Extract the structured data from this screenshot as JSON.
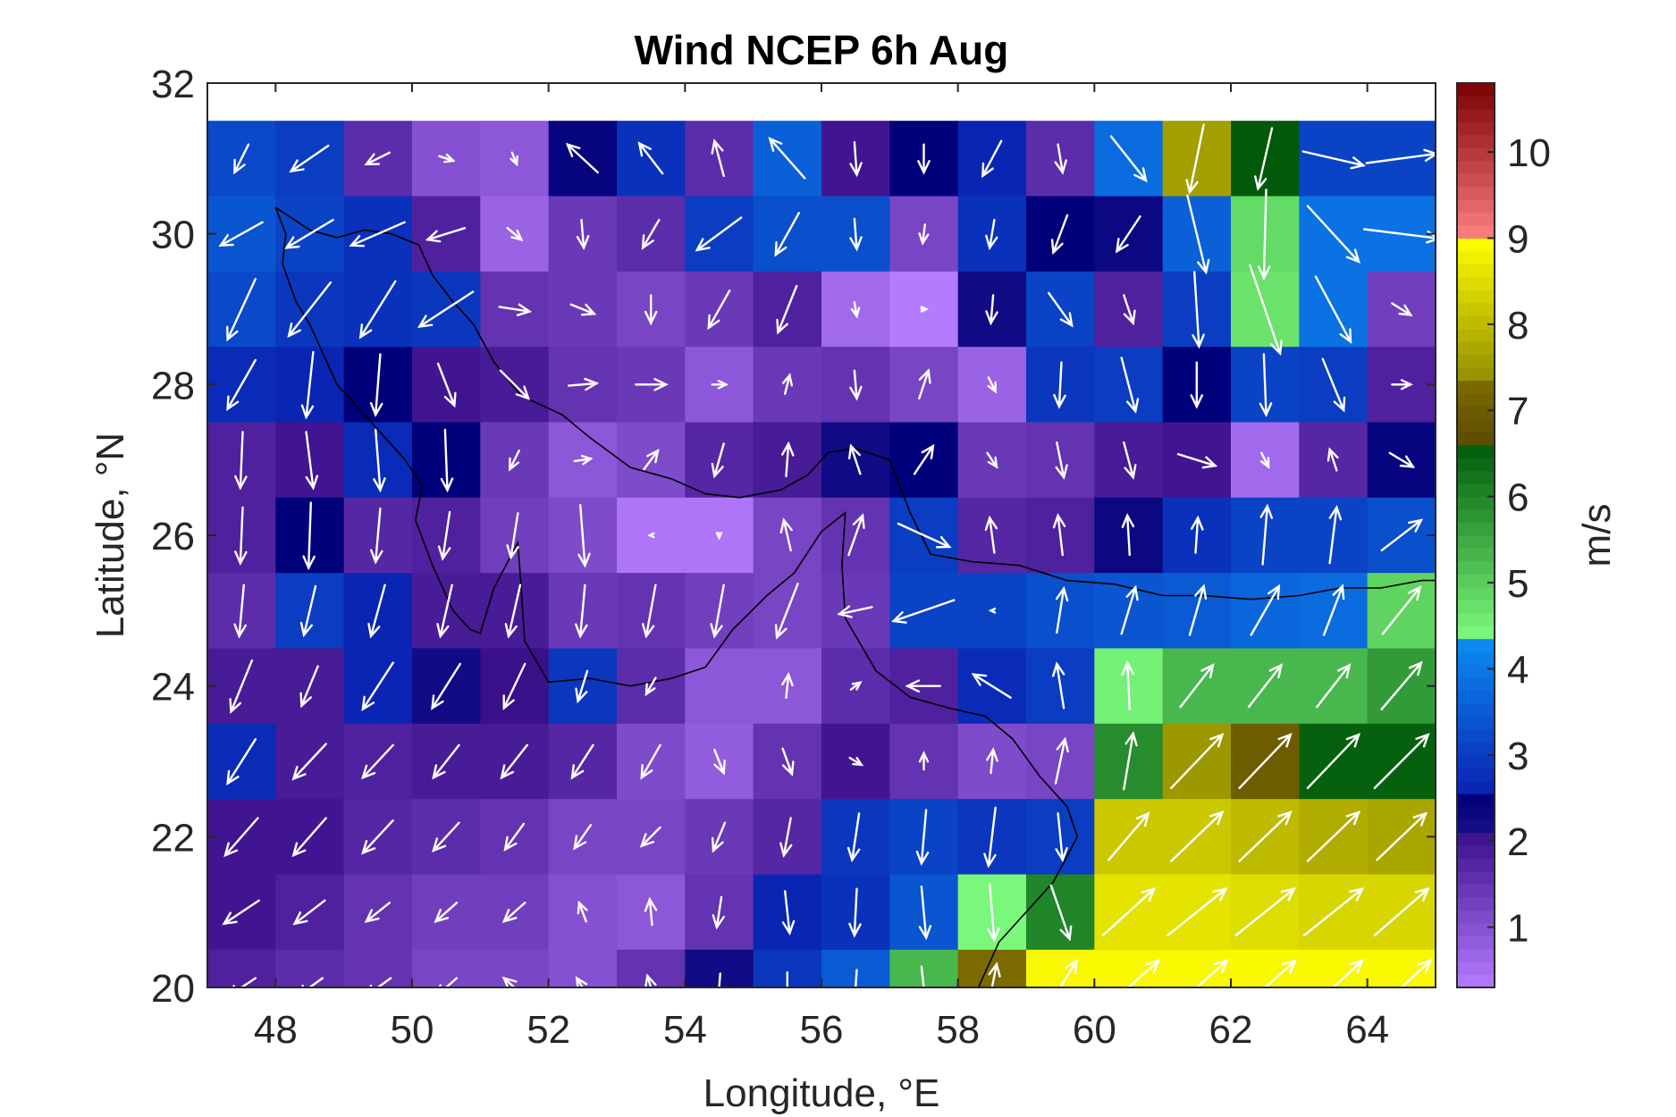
{
  "chart_data": {
    "type": "heatmap",
    "title": "Wind NCEP 6h Aug",
    "xlabel": "Longitude, °E",
    "ylabel": "Latitude, °N",
    "xlim": [
      47,
      65
    ],
    "ylim": [
      20,
      32
    ],
    "x_ticks": [
      "48",
      "50",
      "52",
      "54",
      "56",
      "58",
      "60",
      "62",
      "64"
    ],
    "y_ticks": [
      "20",
      "22",
      "24",
      "26",
      "28",
      "30",
      "32"
    ],
    "colorbar": {
      "label": "m/s",
      "range": [
        0.3,
        10.8
      ],
      "ticks": [
        "1",
        "2",
        "3",
        "4",
        "5",
        "6",
        "7",
        "8",
        "9",
        "10"
      ],
      "segments": [
        {
          "from": 0.3,
          "to": 2.1,
          "color_low": "#b57bff",
          "color_high": "#3a0f8a"
        },
        {
          "from": 2.1,
          "to": 2.5,
          "color_low": "#180f8a",
          "color_high": "#00007a"
        },
        {
          "from": 2.5,
          "to": 4.3,
          "color_low": "#0a1fb0",
          "color_high": "#0a8af0"
        },
        {
          "from": 4.3,
          "to": 6.6,
          "color_low": "#80ff80",
          "color_high": "#005a0a"
        },
        {
          "from": 6.6,
          "to": 7.3,
          "color_low": "#5c4a00",
          "color_high": "#7a6a00"
        },
        {
          "from": 7.3,
          "to": 9.0,
          "color_low": "#908a00",
          "color_high": "#ffff00"
        },
        {
          "from": 9.0,
          "to": 10.8,
          "color_low": "#ff8080",
          "color_high": "#7a0000"
        }
      ]
    },
    "grid_lon": [
      47.5,
      48.5,
      49.5,
      50.5,
      51.5,
      52.5,
      53.5,
      54.5,
      55.5,
      56.5,
      57.5,
      58.5,
      59.5,
      60.5,
      61.5,
      62.5,
      63.5,
      64.5
    ],
    "grid_lat": [
      31,
      30,
      29,
      28,
      27,
      26,
      25,
      24,
      23,
      22,
      21,
      20
    ],
    "speed": [
      [
        3.2,
        3.0,
        1.6,
        1.0,
        0.9,
        2.4,
        2.8,
        1.6,
        3.6,
        2.0,
        2.5,
        2.6,
        1.6,
        3.8,
        7.6,
        6.6,
        3.1,
        3.1
      ],
      [
        3.4,
        3.1,
        2.8,
        1.8,
        0.7,
        1.4,
        1.6,
        3.0,
        3.3,
        3.3,
        1.2,
        2.8,
        2.5,
        2.3,
        3.6,
        4.8,
        3.9,
        3.9
      ],
      [
        3.2,
        2.9,
        2.8,
        2.9,
        1.5,
        1.4,
        1.2,
        1.4,
        1.8,
        0.6,
        0.3,
        2.2,
        3.1,
        1.8,
        3.0,
        4.7,
        3.9,
        1.3
      ],
      [
        2.7,
        2.6,
        2.5,
        2.0,
        1.9,
        1.5,
        1.4,
        0.9,
        1.4,
        1.5,
        1.2,
        0.7,
        2.9,
        3.0,
        2.5,
        3.1,
        3.0,
        1.8
      ],
      [
        1.8,
        2.0,
        2.7,
        2.5,
        1.4,
        0.9,
        1.1,
        1.7,
        1.9,
        2.2,
        2.5,
        1.4,
        1.5,
        1.9,
        2.0,
        0.6,
        1.7,
        2.4
      ],
      [
        1.8,
        2.5,
        1.7,
        1.8,
        1.3,
        1.1,
        0.4,
        0.4,
        1.2,
        1.5,
        3.0,
        1.7,
        1.8,
        2.3,
        2.8,
        3.1,
        3.1,
        3.3
      ],
      [
        1.6,
        3.0,
        2.6,
        1.9,
        1.9,
        1.4,
        1.5,
        1.3,
        1.2,
        1.4,
        3.1,
        3.1,
        3.3,
        3.4,
        3.5,
        3.7,
        3.8,
        4.9
      ],
      [
        1.9,
        1.9,
        2.6,
        2.2,
        2.1,
        2.9,
        1.6,
        0.9,
        0.9,
        1.6,
        1.8,
        2.7,
        3.0,
        4.5,
        5.3,
        5.3,
        5.3,
        5.7
      ],
      [
        2.7,
        1.9,
        1.8,
        1.9,
        1.9,
        1.7,
        1.1,
        0.8,
        1.5,
        2.0,
        1.5,
        1.1,
        1.2,
        5.9,
        7.5,
        7.0,
        6.5,
        6.5
      ],
      [
        2.0,
        2.0,
        1.7,
        1.6,
        1.5,
        1.2,
        1.2,
        1.4,
        1.7,
        2.9,
        3.1,
        2.9,
        3.0,
        8.2,
        8.2,
        8.0,
        7.8,
        7.7
      ],
      [
        2.0,
        1.8,
        1.5,
        1.3,
        1.3,
        1.0,
        0.9,
        1.5,
        2.6,
        2.8,
        3.4,
        4.4,
        6.0,
        8.6,
        8.6,
        8.5,
        8.4,
        8.4
      ],
      [
        1.8,
        1.6,
        1.5,
        1.2,
        1.2,
        1.0,
        1.5,
        2.2,
        2.9,
        3.5,
        5.3,
        7.3,
        8.9,
        8.9,
        8.9,
        8.9,
        8.9,
        8.9
      ]
    ],
    "u_wind": [
      [
        -0.6,
        -1.6,
        -1.0,
        0.6,
        0.2,
        -1.3,
        -1.0,
        -0.4,
        -1.5,
        0.1,
        0.0,
        -0.8,
        0.2,
        1.5,
        -0.6,
        -0.6,
        2.6,
        3.0
      ],
      [
        -1.8,
        -2.0,
        -2.3,
        -1.6,
        0.6,
        0.1,
        -0.7,
        -1.9,
        -1.0,
        0.1,
        -0.1,
        -0.2,
        -0.6,
        -1.0,
        0.8,
        -0.1,
        2.2,
        3.2
      ],
      [
        -1.2,
        -1.8,
        -1.5,
        -2.3,
        1.3,
        1.0,
        0.0,
        -0.9,
        -0.8,
        0.1,
        0.2,
        -0.1,
        1.0,
        0.4,
        0.2,
        1.3,
        1.5,
        0.8
      ],
      [
        -1.2,
        -0.3,
        -0.2,
        0.7,
        1.2,
        1.2,
        1.3,
        0.6,
        0.2,
        0.1,
        0.4,
        0.3,
        -0.1,
        0.6,
        0.0,
        0.1,
        0.9,
        0.8
      ],
      [
        -0.1,
        0.3,
        0.2,
        0.1,
        -0.4,
        0.7,
        0.6,
        -0.4,
        0.1,
        -0.4,
        0.8,
        0.4,
        0.3,
        0.4,
        1.6,
        0.3,
        -0.3,
        1.0
      ],
      [
        -0.1,
        -0.1,
        -0.2,
        -0.3,
        -0.3,
        0.2,
        -0.1,
        0.0,
        -0.3,
        0.6,
        2.2,
        -0.2,
        -0.2,
        -0.1,
        0.1,
        0.2,
        0.3,
        1.7
      ],
      [
        -0.2,
        -0.5,
        -0.6,
        -0.5,
        -0.5,
        -0.2,
        -0.4,
        -0.4,
        -0.9,
        -1.4,
        -2.6,
        -0.1,
        0.3,
        0.6,
        0.6,
        1.2,
        0.8,
        1.6
      ],
      [
        -0.9,
        -0.7,
        -1.3,
        -1.2,
        -0.9,
        -0.4,
        -0.4,
        0.0,
        0.1,
        0.4,
        -1.4,
        -1.6,
        -0.3,
        -0.1,
        1.4,
        1.4,
        1.4,
        1.7
      ],
      [
        -1.2,
        -1.4,
        -1.3,
        -1.1,
        -1.1,
        -0.9,
        -0.8,
        0.4,
        0.4,
        0.5,
        0.0,
        0.1,
        0.4,
        0.4,
        2.2,
        2.2,
        2.2,
        2.3
      ],
      [
        -1.4,
        -1.4,
        -1.3,
        -1.1,
        -0.8,
        -0.7,
        -0.8,
        -0.5,
        -0.3,
        -0.3,
        -0.2,
        -0.3,
        0.2,
        1.7,
        2.2,
        2.2,
        2.2,
        2.1
      ],
      [
        -1.5,
        -1.3,
        -1.0,
        -0.9,
        -0.9,
        -0.3,
        -0.1,
        -0.2,
        0.2,
        -0.1,
        0.2,
        0.2,
        0.8,
        2.2,
        2.5,
        2.5,
        2.5,
        2.3
      ],
      [
        -1.2,
        -1.1,
        -1.1,
        -0.9,
        -0.9,
        -0.5,
        -0.3,
        -0.1,
        0.0,
        -0.1,
        0.2,
        0.4,
        1.4,
        2.6,
        2.6,
        2.6,
        2.5,
        2.5
      ]
    ],
    "v_wind": [
      [
        -1.2,
        -1.1,
        -0.5,
        -0.2,
        -0.5,
        1.2,
        1.3,
        1.5,
        1.7,
        -1.4,
        -1.2,
        -1.5,
        -1.2,
        -1.9,
        -2.9,
        -2.6,
        -0.6,
        0.4
      ],
      [
        -1.0,
        -1.2,
        -1.0,
        -0.5,
        -0.5,
        -1.2,
        -1.2,
        -1.4,
        -1.8,
        -1.3,
        -0.8,
        -1.2,
        -1.6,
        -1.5,
        -3.3,
        -3.8,
        -2.4,
        -0.4
      ],
      [
        -2.6,
        -2.3,
        -2.4,
        -1.5,
        -0.2,
        -0.4,
        -1.2,
        -1.6,
        -2.0,
        -0.6,
        0.0,
        -1.2,
        -1.4,
        -1.2,
        -3.2,
        -3.8,
        -2.8,
        -0.5
      ],
      [
        -2.1,
        -2.8,
        -2.6,
        -1.8,
        -1.2,
        0.1,
        0.0,
        0.0,
        0.8,
        -1.2,
        1.2,
        -0.6,
        -1.9,
        -2.3,
        -1.9,
        -2.6,
        -2.2,
        0.0
      ],
      [
        -2.4,
        -2.4,
        -2.6,
        -2.6,
        -0.8,
        0.1,
        0.8,
        -1.4,
        1.4,
        1.2,
        1.2,
        -0.6,
        -1.5,
        -1.5,
        -0.5,
        -0.6,
        0.9,
        -0.6
      ],
      [
        -2.4,
        -2.8,
        -2.3,
        -2.0,
        -1.9,
        -2.6,
        0.0,
        -0.2,
        1.3,
        1.7,
        -1.0,
        1.5,
        1.7,
        1.7,
        1.5,
        2.5,
        2.4,
        1.3
      ],
      [
        -2.2,
        -2.1,
        -2.2,
        -2.2,
        -2.2,
        -2.2,
        -2.2,
        -2.2,
        -2.3,
        -0.3,
        -0.9,
        0.0,
        1.9,
        2.0,
        2.1,
        2.1,
        2.1,
        2.0
      ],
      [
        -2.2,
        -1.7,
        -2.0,
        -1.9,
        -1.9,
        -1.3,
        -0.7,
        0.0,
        1.0,
        0.3,
        0.0,
        1.0,
        1.9,
        2.0,
        1.8,
        1.8,
        1.8,
        2.0
      ],
      [
        -1.9,
        -1.5,
        -1.4,
        -1.4,
        -1.4,
        -1.4,
        -1.4,
        -1.0,
        -1.1,
        -0.3,
        0.7,
        1.0,
        1.9,
        2.4,
        2.3,
        2.3,
        2.3,
        2.3
      ],
      [
        -1.6,
        -1.6,
        -1.4,
        -1.2,
        -1.1,
        -1.0,
        -0.8,
        -1.2,
        -1.6,
        -2.0,
        -2.3,
        -2.5,
        -2.0,
        2.0,
        2.1,
        2.1,
        2.1,
        2.0
      ],
      [
        -1.0,
        -1.0,
        -0.8,
        -0.8,
        -0.8,
        0.8,
        1.1,
        -1.3,
        -1.8,
        -2.0,
        -2.2,
        -2.4,
        -2.3,
        2.0,
        2.0,
        2.0,
        2.0,
        2.0
      ],
      [
        -0.8,
        -0.8,
        -0.8,
        -0.8,
        0.8,
        0.8,
        1.0,
        -1.2,
        -1.3,
        -1.5,
        -1.8,
        2.0,
        2.3,
        2.3,
        2.3,
        2.3,
        2.3,
        2.3
      ]
    ],
    "arrow_color": "#ffffff",
    "coastline_color": "#000000",
    "coastline": [
      [
        [
          48.0,
          30.35
        ],
        [
          48.5,
          30.05
        ],
        [
          48.9,
          29.95
        ],
        [
          49.3,
          30.05
        ],
        [
          49.7,
          30.0
        ],
        [
          50.1,
          29.85
        ],
        [
          50.3,
          29.45
        ],
        [
          50.6,
          29.1
        ],
        [
          50.9,
          28.8
        ],
        [
          51.2,
          28.3
        ],
        [
          51.6,
          27.85
        ],
        [
          52.2,
          27.6
        ],
        [
          52.6,
          27.3
        ],
        [
          53.2,
          26.9
        ],
        [
          53.8,
          26.75
        ],
        [
          54.3,
          26.55
        ],
        [
          54.8,
          26.5
        ],
        [
          55.4,
          26.6
        ],
        [
          55.8,
          26.8
        ],
        [
          56.1,
          27.1
        ],
        [
          56.5,
          27.15
        ],
        [
          57.0,
          27.0
        ],
        [
          57.3,
          26.3
        ],
        [
          57.6,
          25.75
        ],
        [
          58.2,
          25.65
        ],
        [
          58.9,
          25.6
        ],
        [
          59.6,
          25.4
        ],
        [
          60.3,
          25.35
        ],
        [
          61.0,
          25.2
        ],
        [
          61.6,
          25.2
        ],
        [
          62.3,
          25.15
        ],
        [
          63.0,
          25.2
        ],
        [
          63.6,
          25.3
        ],
        [
          64.2,
          25.3
        ],
        [
          64.8,
          25.4
        ],
        [
          65.0,
          25.4
        ]
      ],
      [
        [
          48.0,
          30.35
        ],
        [
          48.15,
          30.0
        ],
        [
          48.1,
          29.6
        ],
        [
          48.3,
          29.1
        ],
        [
          48.5,
          28.8
        ],
        [
          48.7,
          28.4
        ],
        [
          48.9,
          28.0
        ],
        [
          49.4,
          27.5
        ],
        [
          49.9,
          27.0
        ],
        [
          50.15,
          26.65
        ],
        [
          50.05,
          26.2
        ],
        [
          50.3,
          25.6
        ],
        [
          50.6,
          25.0
        ],
        [
          50.85,
          24.75
        ],
        [
          51.0,
          24.7
        ],
        [
          51.2,
          25.3
        ],
        [
          51.55,
          25.9
        ],
        [
          51.6,
          25.3
        ],
        [
          51.65,
          24.6
        ],
        [
          52.0,
          24.05
        ],
        [
          52.6,
          24.1
        ],
        [
          53.2,
          24.0
        ],
        [
          53.8,
          24.1
        ],
        [
          54.3,
          24.25
        ],
        [
          54.7,
          24.75
        ],
        [
          55.2,
          25.2
        ],
        [
          55.6,
          25.5
        ],
        [
          56.0,
          26.05
        ],
        [
          56.35,
          26.3
        ],
        [
          56.3,
          25.6
        ],
        [
          56.35,
          24.9
        ],
        [
          56.8,
          24.2
        ],
        [
          57.3,
          23.85
        ],
        [
          57.9,
          23.7
        ],
        [
          58.4,
          23.6
        ],
        [
          58.8,
          23.3
        ],
        [
          59.2,
          22.8
        ],
        [
          59.6,
          22.4
        ],
        [
          59.75,
          22.0
        ],
        [
          59.4,
          21.4
        ],
        [
          59.0,
          21.0
        ],
        [
          58.6,
          20.6
        ],
        [
          58.4,
          20.2
        ],
        [
          58.3,
          20.0
        ]
      ]
    ]
  }
}
